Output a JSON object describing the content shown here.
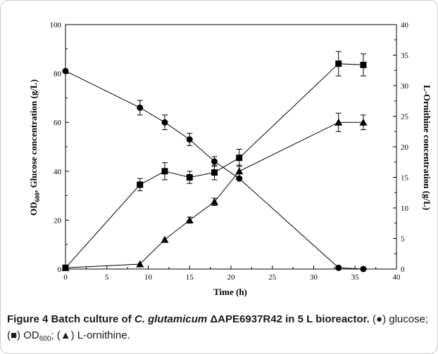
{
  "chart_data": {
    "type": "line",
    "x": [
      0,
      9,
      12,
      15,
      18,
      21,
      33,
      36
    ],
    "xlabel": "Time (h)",
    "xlim": [
      0,
      40
    ],
    "xticks": [
      0,
      5,
      10,
      15,
      20,
      25,
      30,
      35,
      40
    ],
    "ylabel_left_main": "OD",
    "ylabel_left_sub": "600",
    "ylabel_left_rest": ", Glucose concentration (g/L)",
    "ylim_left": [
      0,
      100
    ],
    "yticks_left": [
      0,
      20,
      40,
      60,
      80,
      100
    ],
    "ylabel_right": "L-Ornithine concentration (g/L)",
    "ylim_right": [
      0,
      40
    ],
    "yticks_right": [
      0,
      5,
      10,
      15,
      20,
      25,
      30,
      35,
      40
    ],
    "series": [
      {
        "marker": "circle",
        "axis": "left",
        "values": [
          81,
          66,
          60,
          53,
          44,
          37,
          0.5,
          0
        ],
        "errors": [
          0,
          3,
          3,
          2.5,
          2,
          0,
          0,
          0
        ]
      },
      {
        "marker": "square",
        "axis": "left",
        "values": [
          0.5,
          34.5,
          40,
          37.5,
          39.5,
          45.5,
          84,
          83.5
        ],
        "errors": [
          0,
          2.5,
          3.5,
          2.5,
          3,
          3.5,
          5,
          4.5
        ]
      },
      {
        "marker": "triangle",
        "axis": "right",
        "values": [
          0.2,
          0.8,
          4.8,
          8,
          11,
          16,
          24,
          24
        ],
        "errors": [
          0,
          0,
          0,
          0.5,
          0.6,
          1,
          1.5,
          1.2
        ]
      }
    ]
  },
  "caption": {
    "label": "Figure 4",
    "title_a": " Batch culture of ",
    "title_species": "C. glutamicum",
    "title_b": " ΔAPE6937R42 in 5 L bioreactor.",
    "legend_glucose": " (●) glucose; (■) OD",
    "legend_od_sub": "600",
    "legend_rest": "; (▲) L-ornithine."
  }
}
